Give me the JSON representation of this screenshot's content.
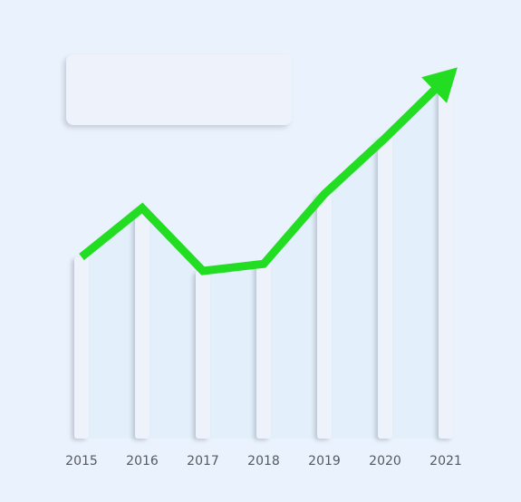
{
  "chart_data": {
    "type": "line",
    "title": "",
    "xlabel": "",
    "ylabel": "",
    "categories": [
      "2015",
      "2016",
      "2017",
      "2018",
      "2019",
      "2020",
      "2021"
    ],
    "series": [
      {
        "values": [
          52,
          66,
          48,
          50,
          70,
          86,
          103
        ]
      }
    ],
    "ylim": [
      0,
      110
    ],
    "grid": false,
    "legend": "none",
    "line_color": "#22dd22",
    "bar_color": "#eef3fb",
    "area_color": "#e3f0fb",
    "arrow_end": true
  }
}
